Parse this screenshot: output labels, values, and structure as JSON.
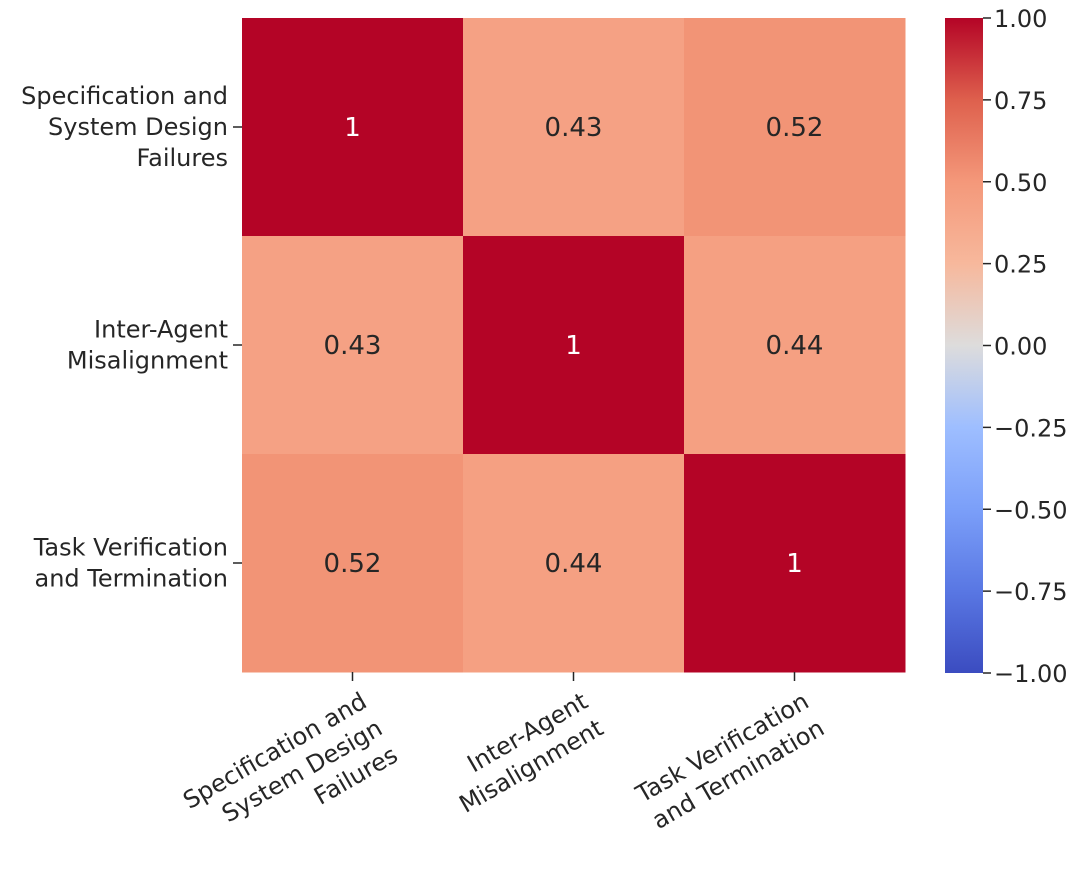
{
  "chart_data": {
    "type": "heatmap",
    "title": "",
    "row_labels": [
      [
        "Specification and",
        "System Design",
        "Failures"
      ],
      [
        "Inter-Agent",
        "Misalignment"
      ],
      [
        "Task Verification",
        "and Termination"
      ]
    ],
    "col_labels": [
      [
        "Specification and",
        "System Design",
        "Failures"
      ],
      [
        "Inter-Agent",
        "Misalignment"
      ],
      [
        "Task Verification",
        "and Termination"
      ]
    ],
    "values": [
      [
        1,
        0.43,
        0.52
      ],
      [
        0.43,
        1,
        0.44
      ],
      [
        0.52,
        0.44,
        1
      ]
    ],
    "cell_labels": [
      [
        "1",
        "0.43",
        "0.52"
      ],
      [
        "0.43",
        "1",
        "0.44"
      ],
      [
        "0.52",
        "0.44",
        "1"
      ]
    ],
    "colormap": "coolwarm",
    "colorbar": {
      "min": -1.0,
      "max": 1.0,
      "ticks": [
        1.0,
        0.75,
        0.5,
        0.25,
        0.0,
        -0.25,
        -0.5,
        -0.75,
        -1.0
      ],
      "tick_labels": [
        "1.00",
        "0.75",
        "0.50",
        "0.25",
        "0.00",
        "−0.25",
        "−0.50",
        "−0.75",
        "−1.00"
      ]
    },
    "colors": {
      "cell_1": "#b40426",
      "cell_044": "#f7ac8e",
      "cell_043": "#f7ad90",
      "cell_052": "#f29274",
      "text_dark": "#262626",
      "text_light": "#ffffff"
    }
  }
}
